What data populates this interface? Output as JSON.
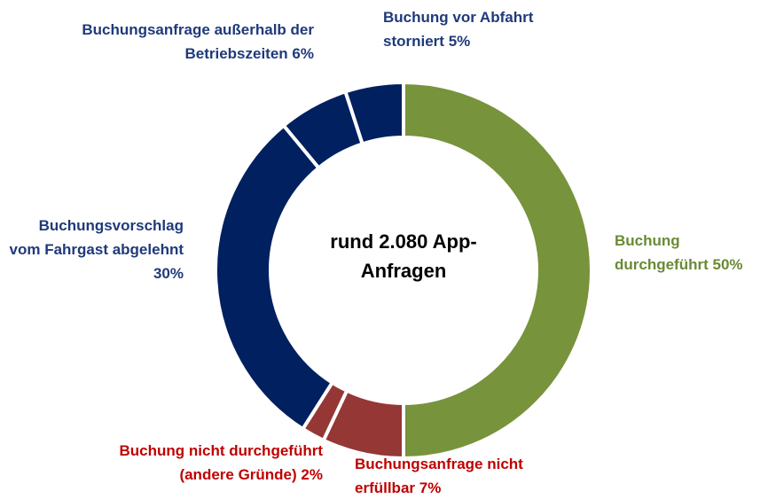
{
  "chart_data": {
    "type": "donut",
    "center_text": "rund 2.080 App-Anfragen",
    "categories": [
      "Buchung durchgeführt",
      "Buchungsanfrage nicht erfüllbar",
      "Buchung nicht durchgeführt (andere Gründe)",
      "Buchungsvorschlag vom Fahrgast abgelehnt",
      "Buchungsanfrage außerhalb der Betriebszeiten",
      "Buchung vor Abfahrt storniert"
    ],
    "values": [
      50,
      7,
      2,
      30,
      6,
      5
    ],
    "value_labels": [
      "50%",
      "7%",
      "2%",
      "30%",
      "6%",
      "5%"
    ],
    "colors": [
      "#77933c",
      "#953735",
      "#953735",
      "#002060",
      "#002060",
      "#002060"
    ],
    "label_colors": [
      "#6a8a34",
      "#c00000",
      "#c00000",
      "#1f3a7a",
      "#1f3a7a",
      "#1f3a7a"
    ]
  }
}
